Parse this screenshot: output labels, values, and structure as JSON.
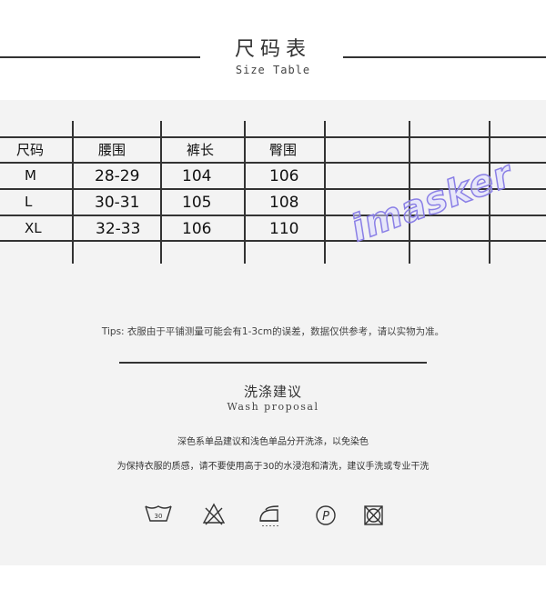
{
  "header": {
    "title": "尺码表",
    "subtitle": "Size Table"
  },
  "table": {
    "headers": [
      "尺码",
      "腰围",
      "裤长",
      "臀围"
    ],
    "rows": [
      [
        "M",
        "28-29",
        "104",
        "106"
      ],
      [
        "L",
        "30-31",
        "105",
        "108"
      ],
      [
        "XL",
        "32-33",
        "106",
        "110"
      ]
    ]
  },
  "watermark": "imasker",
  "tips": "Tips: 衣服由于平铺测量可能会有1-3cm的误差，数据仅供参考，请以实物为准。",
  "wash": {
    "title": "洗涤建议",
    "subtitle": "Wash proposal",
    "line1": "深色系单品建议和浅色单品分开洗涤，以免染色",
    "line2": "为保持衣服的质感，请不要使用高于30的水浸泡和清洗，建议手洗或专业干洗",
    "icons": [
      {
        "name": "wash-30-icon",
        "label": "30"
      },
      {
        "name": "no-bleach-icon"
      },
      {
        "name": "steam-iron-icon"
      },
      {
        "name": "dry-clean-p-icon",
        "label": "P"
      },
      {
        "name": "no-tumble-dry-icon"
      }
    ]
  }
}
